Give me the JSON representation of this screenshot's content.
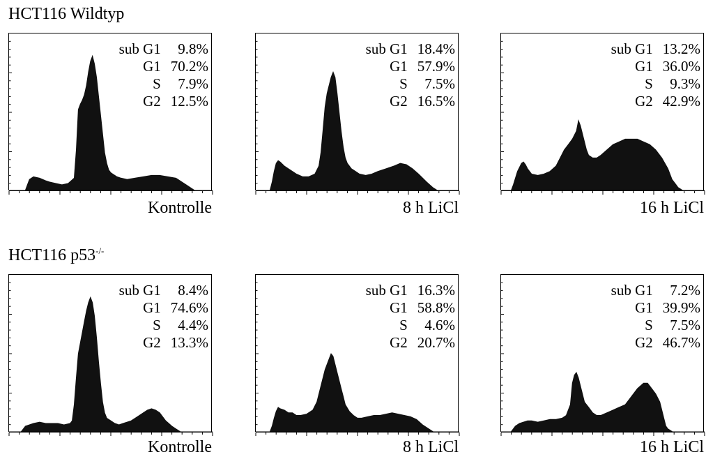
{
  "rows": [
    {
      "title": "HCT116  Wildtyp",
      "title_sup": ""
    },
    {
      "title": "HCT116 p53",
      "title_sup": "-/-"
    }
  ],
  "chart_data": [
    {
      "type": "area",
      "row": 1,
      "caption": "Kontrolle",
      "stats": [
        {
          "label": "sub G1",
          "value": "9.8%"
        },
        {
          "label": "G1",
          "value": "70.2%"
        },
        {
          "label": "S",
          "value": "7.9%"
        },
        {
          "label": "G2",
          "value": "12.5%"
        }
      ],
      "xlim": [
        0,
        100
      ],
      "ylim": [
        0,
        100
      ],
      "x": [
        8,
        9,
        10,
        12,
        15,
        18,
        20,
        23,
        26,
        29,
        32,
        33,
        34,
        35,
        36,
        37,
        38,
        39,
        40,
        41,
        42,
        43,
        44,
        45,
        46,
        47,
        48,
        49,
        50,
        51,
        52,
        53,
        55,
        58,
        62,
        66,
        70,
        74,
        78,
        82,
        85,
        88,
        90,
        91
      ],
      "y": [
        0,
        4,
        8,
        10,
        9,
        7,
        6,
        5,
        4,
        5,
        9,
        30,
        60,
        64,
        67,
        71,
        78,
        88,
        96,
        100,
        94,
        84,
        70,
        56,
        42,
        28,
        20,
        15,
        13,
        12,
        11,
        10,
        9,
        8,
        9,
        10,
        11,
        11,
        10,
        9,
        6,
        3,
        1,
        0
      ]
    },
    {
      "type": "area",
      "row": 1,
      "caption": "8 h LiCl",
      "stats": [
        {
          "label": "sub G1",
          "value": "18.4%"
        },
        {
          "label": "G1",
          "value": "57.9%"
        },
        {
          "label": "S",
          "value": "7.5%"
        },
        {
          "label": "G2",
          "value": "16.5%"
        }
      ],
      "xlim": [
        0,
        100
      ],
      "ylim": [
        0,
        100
      ],
      "x": [
        7,
        8,
        9,
        10,
        11,
        12,
        14,
        16,
        18,
        20,
        23,
        26,
        29,
        31,
        32,
        33,
        34,
        35,
        36,
        37,
        38,
        39,
        40,
        41,
        42,
        43,
        44,
        45,
        47,
        49,
        51,
        54,
        57,
        60,
        64,
        68,
        71,
        74,
        77,
        80,
        84,
        87,
        89
      ],
      "y": [
        0,
        6,
        14,
        20,
        22,
        21,
        18,
        16,
        14,
        12,
        10,
        10,
        12,
        18,
        28,
        45,
        62,
        72,
        78,
        84,
        88,
        84,
        72,
        58,
        44,
        32,
        24,
        20,
        16,
        14,
        12,
        11,
        12,
        14,
        16,
        18,
        20,
        19,
        16,
        12,
        6,
        2,
        0
      ]
    },
    {
      "type": "area",
      "row": 1,
      "caption": "16 h LiCl",
      "stats": [
        {
          "label": "sub G1",
          "value": "13.2%"
        },
        {
          "label": "G1",
          "value": "36.0%"
        },
        {
          "label": "S",
          "value": "9.3%"
        },
        {
          "label": "G2",
          "value": "42.9%"
        }
      ],
      "xlim": [
        0,
        100
      ],
      "ylim": [
        0,
        100
      ],
      "x": [
        5,
        6,
        8,
        10,
        11,
        12,
        13,
        15,
        18,
        21,
        24,
        27,
        29,
        31,
        33,
        35,
        37,
        38,
        39,
        40,
        41,
        42,
        43,
        45,
        47,
        49,
        52,
        55,
        58,
        61,
        64,
        67,
        70,
        73,
        76,
        79,
        82,
        84,
        86,
        87,
        88,
        89
      ],
      "y": [
        0,
        4,
        14,
        20,
        21,
        19,
        16,
        12,
        11,
        12,
        14,
        18,
        24,
        30,
        34,
        38,
        44,
        52,
        48,
        42,
        36,
        30,
        26,
        24,
        24,
        26,
        30,
        34,
        36,
        38,
        38,
        38,
        36,
        34,
        30,
        24,
        16,
        8,
        4,
        2,
        1,
        0
      ]
    },
    {
      "type": "area",
      "row": 2,
      "caption": "Kontrolle",
      "stats": [
        {
          "label": "sub G1",
          "value": "8.4%"
        },
        {
          "label": "G1",
          "value": "74.6%"
        },
        {
          "label": "S",
          "value": "4.4%"
        },
        {
          "label": "G2",
          "value": "13.3%"
        }
      ],
      "xlim": [
        0,
        100
      ],
      "ylim": [
        0,
        100
      ],
      "x": [
        6,
        7,
        8,
        10,
        12,
        15,
        18,
        21,
        24,
        27,
        30,
        31,
        32,
        33,
        34,
        35,
        36,
        37,
        38,
        39,
        40,
        41,
        42,
        43,
        44,
        45,
        46,
        47,
        48,
        50,
        52,
        54,
        56,
        58,
        60,
        62,
        64,
        66,
        68,
        70,
        72,
        74,
        77,
        80,
        82,
        84
      ],
      "y": [
        0,
        2,
        4,
        5,
        6,
        7,
        6,
        6,
        6,
        5,
        6,
        8,
        20,
        40,
        58,
        66,
        74,
        82,
        90,
        96,
        100,
        96,
        86,
        70,
        52,
        36,
        22,
        14,
        10,
        8,
        6,
        5,
        6,
        7,
        8,
        10,
        12,
        14,
        16,
        17,
        16,
        14,
        8,
        4,
        2,
        0
      ]
    },
    {
      "type": "area",
      "row": 2,
      "caption": "8 h LiCl",
      "stats": [
        {
          "label": "sub G1",
          "value": "16.3%"
        },
        {
          "label": "G1",
          "value": "58.8%"
        },
        {
          "label": "S",
          "value": "4.6%"
        },
        {
          "label": "G2",
          "value": "20.7%"
        }
      ],
      "xlim": [
        0,
        100
      ],
      "ylim": [
        0,
        100
      ],
      "x": [
        7,
        8,
        9,
        10,
        11,
        12,
        14,
        16,
        18,
        20,
        22,
        25,
        28,
        30,
        32,
        34,
        36,
        37,
        38,
        39,
        40,
        41,
        42,
        43,
        44,
        46,
        48,
        50,
        52,
        55,
        58,
        61,
        64,
        67,
        70,
        73,
        76,
        79,
        82,
        85,
        87
      ],
      "y": [
        0,
        4,
        10,
        15,
        18,
        17,
        16,
        14,
        14,
        12,
        12,
        13,
        16,
        22,
        34,
        46,
        54,
        58,
        56,
        50,
        44,
        38,
        32,
        26,
        20,
        15,
        12,
        10,
        10,
        11,
        12,
        12,
        13,
        14,
        13,
        12,
        11,
        9,
        5,
        2,
        0
      ]
    },
    {
      "type": "area",
      "row": 2,
      "caption": "16 h LiCl",
      "stats": [
        {
          "label": "sub G1",
          "value": "7.2%"
        },
        {
          "label": "G1",
          "value": "39.9%"
        },
        {
          "label": "S",
          "value": "7.5%"
        },
        {
          "label": "G2",
          "value": "46.7%"
        }
      ],
      "xlim": [
        0,
        100
      ],
      "ylim": [
        0,
        100
      ],
      "x": [
        5,
        7,
        9,
        11,
        13,
        15,
        18,
        21,
        24,
        27,
        30,
        32,
        34,
        35,
        36,
        37,
        38,
        39,
        40,
        41,
        43,
        45,
        47,
        49,
        52,
        55,
        58,
        61,
        64,
        67,
        70,
        72,
        74,
        76,
        78,
        79,
        80,
        81,
        82,
        83,
        84
      ],
      "y": [
        0,
        4,
        6,
        7,
        8,
        8,
        7,
        8,
        9,
        9,
        10,
        12,
        20,
        36,
        42,
        44,
        40,
        34,
        28,
        22,
        18,
        14,
        12,
        12,
        14,
        16,
        18,
        20,
        26,
        32,
        36,
        36,
        32,
        28,
        22,
        16,
        10,
        4,
        2,
        1,
        0
      ]
    }
  ]
}
